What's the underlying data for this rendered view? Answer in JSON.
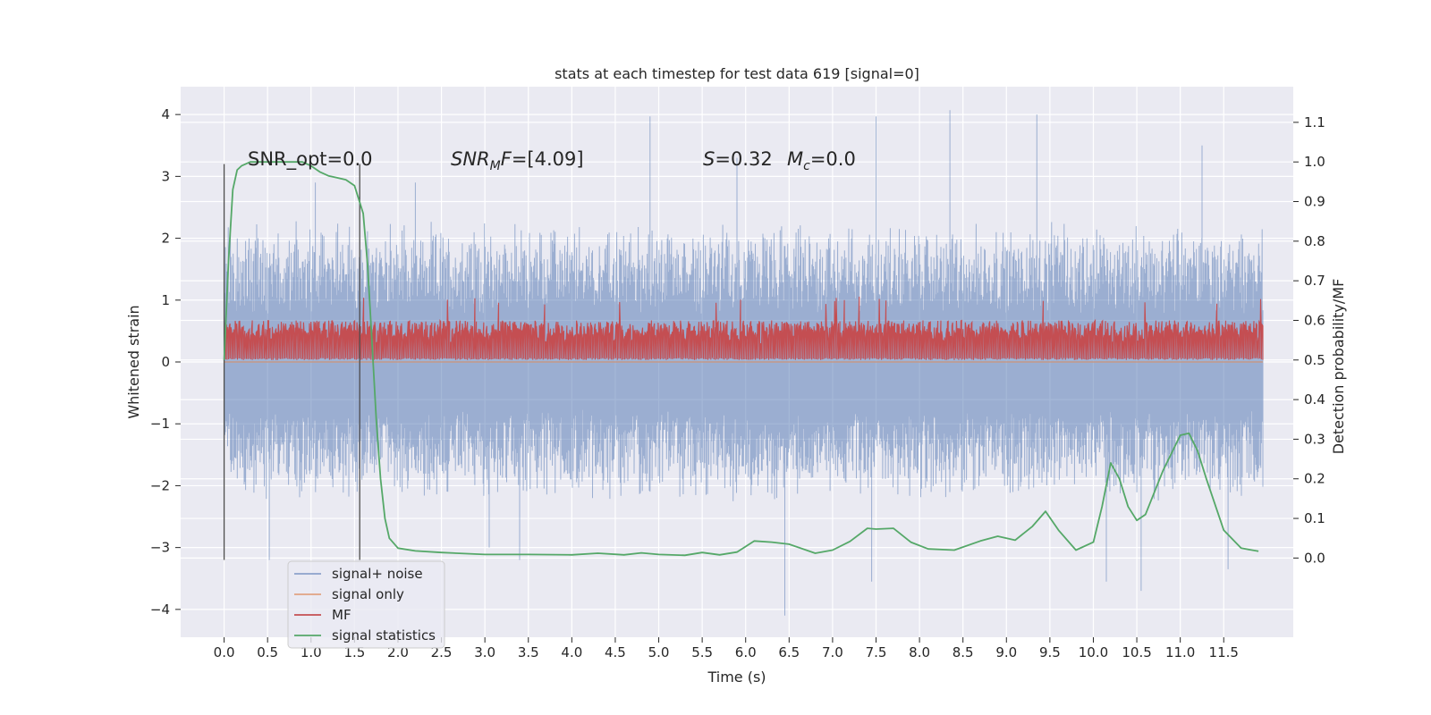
{
  "chart_data": {
    "type": "line",
    "title": "stats at each timestep for test data 619 [signal=0]",
    "xlabel": "Time (s)",
    "ylabel_left": "Whitened strain",
    "ylabel_right": "Detection probability/MF",
    "xlim": [
      -0.5,
      12.3
    ],
    "ylim_left": [
      -4.45,
      4.45
    ],
    "ylim_right": [
      -0.2,
      1.19
    ],
    "xticks": [
      "0.0",
      "0.5",
      "1.0",
      "1.5",
      "2.0",
      "2.5",
      "3.0",
      "3.5",
      "4.0",
      "4.5",
      "5.0",
      "5.5",
      "6.0",
      "6.5",
      "7.0",
      "7.5",
      "8.0",
      "8.5",
      "9.0",
      "9.5",
      "10.0",
      "10.5",
      "11.0",
      "11.5"
    ],
    "yticks_left": [
      "4",
      "3",
      "2",
      "1",
      "0",
      "−1",
      "−2",
      "−3",
      "−4"
    ],
    "yticks_right": [
      "1.1",
      "1.0",
      "0.9",
      "0.8",
      "0.7",
      "0.6",
      "0.5",
      "0.4",
      "0.3",
      "0.2",
      "0.1",
      "0.0"
    ],
    "grid": true,
    "legend_position": "lower-left",
    "annotations": {
      "snr_opt": "SNR_opt=0.0",
      "snr_mf_sym": "SNR",
      "snr_mf_sub": "M",
      "snr_mf_mid": "F",
      "snr_mf_val": "=[4.09]",
      "s_sym": "S",
      "s_val": "=0.32",
      "mc_sym": "M",
      "mc_sub": "c",
      "mc_val": "=0.0"
    },
    "vlines_x": [
      0.0,
      1.56
    ],
    "vlines_y_range": [
      -3.2,
      3.2
    ],
    "series": [
      {
        "name": "signal+ noise",
        "color": "#4c72b0",
        "axis": "left",
        "description_level": "noisy strain, envelope approx -2.0 to 2.0 with spikes to about ±4",
        "x_range": [
          0.0,
          11.95
        ],
        "typical_max": 2.0,
        "typical_min": -2.0,
        "spikes": [
          {
            "x": 0.52,
            "y": -3.2
          },
          {
            "x": 1.05,
            "y": 2.9
          },
          {
            "x": 2.2,
            "y": 2.9
          },
          {
            "x": 3.4,
            "y": -3.2
          },
          {
            "x": 4.9,
            "y": 3.97
          },
          {
            "x": 6.45,
            "y": -4.1
          },
          {
            "x": 7.5,
            "y": 3.97
          },
          {
            "x": 7.45,
            "y": -3.55
          },
          {
            "x": 8.35,
            "y": 4.07
          },
          {
            "x": 9.35,
            "y": 4.0
          },
          {
            "x": 10.15,
            "y": -3.55
          },
          {
            "x": 10.55,
            "y": -3.7
          },
          {
            "x": 11.25,
            "y": 3.5
          },
          {
            "x": 11.55,
            "y": -3.35
          },
          {
            "x": 5.9,
            "y": 3.3
          },
          {
            "x": 3.05,
            "y": -3.0
          }
        ]
      },
      {
        "name": "signal only",
        "color": "#dd8452",
        "axis": "left",
        "values_constant": 0.0,
        "x_range": [
          0.0,
          11.95
        ]
      },
      {
        "name": "MF",
        "color": "#c44e52",
        "axis": "right",
        "base": 0.5,
        "typical_top": 0.6,
        "peak_top": 0.66,
        "x_range": [
          0.0,
          11.95
        ]
      },
      {
        "name": "signal statistics",
        "color": "#55a868",
        "axis": "right",
        "x": [
          0.0,
          0.05,
          0.1,
          0.15,
          0.2,
          0.3,
          0.5,
          0.7,
          0.9,
          1.0,
          1.1,
          1.2,
          1.3,
          1.4,
          1.5,
          1.6,
          1.65,
          1.7,
          1.75,
          1.8,
          1.85,
          1.9,
          2.0,
          2.2,
          2.5,
          3.0,
          3.5,
          4.0,
          4.3,
          4.6,
          4.8,
          5.0,
          5.3,
          5.5,
          5.7,
          5.9,
          6.1,
          6.3,
          6.5,
          6.8,
          7.0,
          7.2,
          7.4,
          7.5,
          7.7,
          7.9,
          8.1,
          8.4,
          8.7,
          8.9,
          9.1,
          9.3,
          9.45,
          9.6,
          9.8,
          10.0,
          10.1,
          10.2,
          10.3,
          10.4,
          10.5,
          10.6,
          10.8,
          11.0,
          11.1,
          11.2,
          11.3,
          11.5,
          11.7,
          11.9
        ],
        "y": [
          0.5,
          0.75,
          0.93,
          0.98,
          0.99,
          1.0,
          1.0,
          1.0,
          1.0,
          0.99,
          0.975,
          0.965,
          0.96,
          0.955,
          0.94,
          0.87,
          0.74,
          0.55,
          0.35,
          0.2,
          0.1,
          0.05,
          0.025,
          0.018,
          0.014,
          0.009,
          0.009,
          0.008,
          0.012,
          0.008,
          0.013,
          0.009,
          0.007,
          0.014,
          0.008,
          0.015,
          0.043,
          0.04,
          0.035,
          0.012,
          0.02,
          0.042,
          0.075,
          0.073,
          0.075,
          0.04,
          0.023,
          0.02,
          0.043,
          0.055,
          0.045,
          0.08,
          0.118,
          0.07,
          0.02,
          0.04,
          0.13,
          0.24,
          0.2,
          0.13,
          0.095,
          0.11,
          0.22,
          0.31,
          0.315,
          0.27,
          0.2,
          0.07,
          0.025,
          0.017
        ]
      }
    ]
  }
}
